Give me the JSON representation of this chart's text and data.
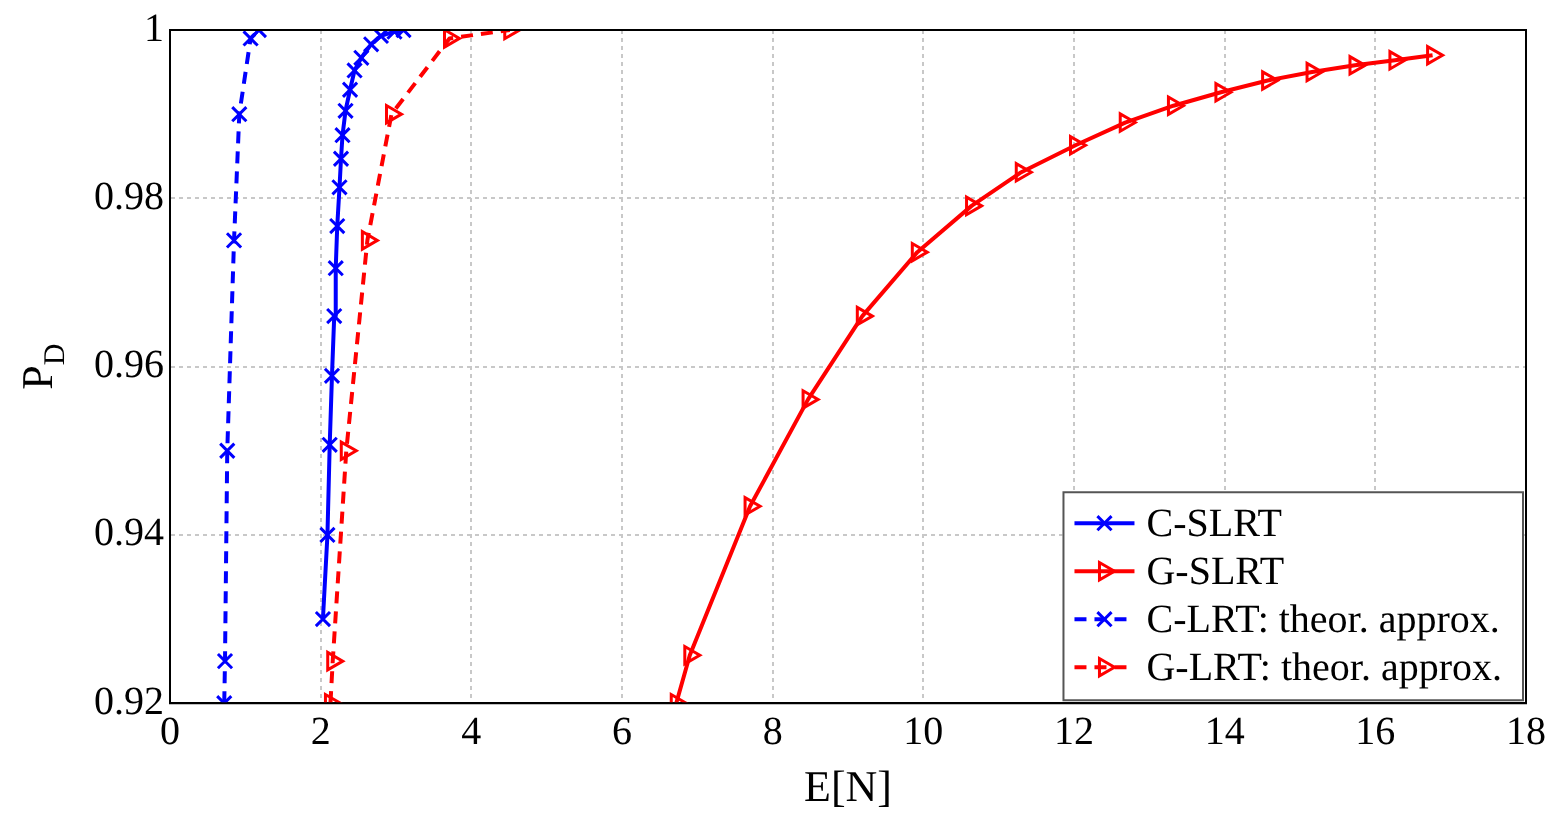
{
  "chart_data": {
    "type": "line",
    "xlabel": "E[N]",
    "ylabel": "P$_{D}$",
    "xlim": [
      0,
      18
    ],
    "xticks": [
      0,
      2,
      4,
      6,
      8,
      10,
      12,
      14,
      16,
      18
    ],
    "ylim": [
      0.92,
      1
    ],
    "yticks": [
      0.92,
      0.94,
      0.96,
      0.98,
      1
    ],
    "grid": true,
    "legend": "bottom right",
    "series": [
      {
        "name": "C-SLRT",
        "color": "#0000ff",
        "marker": "cross",
        "line_style": "solid",
        "x": [
          2.03,
          2.09,
          2.12,
          2.15,
          2.18,
          2.2,
          2.22,
          2.25,
          2.27,
          2.29,
          2.33,
          2.39,
          2.45,
          2.54,
          2.67,
          2.8,
          2.98,
          3.1
        ],
        "values": [
          0.93,
          0.94,
          0.9507,
          0.9589,
          0.966,
          0.9717,
          0.9767,
          0.9813,
          0.9847,
          0.9875,
          0.9904,
          0.9929,
          0.9952,
          0.9967,
          0.9983,
          0.9993,
          0.9998,
          1
        ]
      },
      {
        "name": "G-SLRT",
        "color": "#ff0000",
        "marker": "triangle",
        "line_style": "solid",
        "x": [
          6.72,
          6.9,
          7.7,
          8.47,
          9.19,
          9.92,
          10.64,
          11.3,
          12.02,
          12.68,
          13.32,
          13.95,
          14.57,
          15.16,
          15.73,
          16.26,
          16.76
        ],
        "values": [
          0.92,
          0.9257,
          0.9434,
          0.9561,
          0.966,
          0.9736,
          0.9791,
          0.9831,
          0.9863,
          0.989,
          0.991,
          0.9926,
          0.994,
          0.995,
          0.9958,
          0.9964,
          0.997
        ]
      },
      {
        "name": "C-LRT: theor. approx.",
        "color": "#0000ff",
        "marker": "cross",
        "line_style": "dashed",
        "x": [
          0.72,
          0.73,
          0.76,
          0.85,
          0.92,
          1.07,
          1.18
        ],
        "values": [
          0.92,
          0.925,
          0.95,
          0.975,
          0.99,
          0.999,
          1
        ]
      },
      {
        "name": "G-LRT: theor. approx.",
        "color": "#ff0000",
        "marker": "triangle",
        "line_style": "dashed",
        "x": [
          2.13,
          2.16,
          2.34,
          2.62,
          2.94,
          3.71,
          4.51
        ],
        "values": [
          0.92,
          0.925,
          0.95,
          0.975,
          0.99,
          0.999,
          1
        ]
      }
    ]
  }
}
